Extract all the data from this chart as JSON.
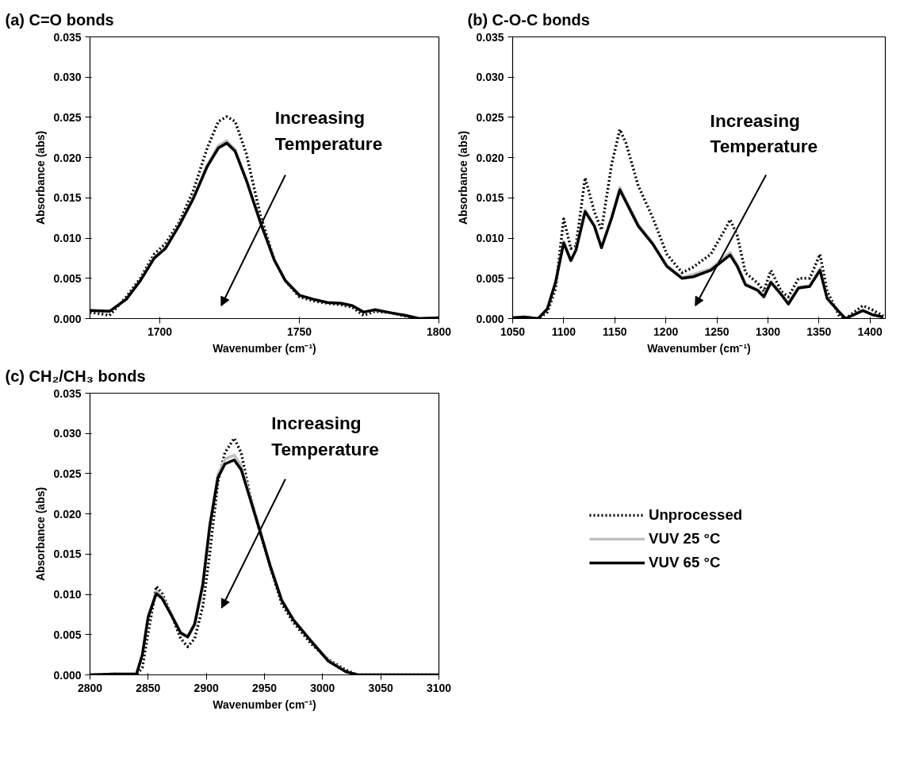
{
  "chart_data": [
    {
      "type": "line",
      "title": "(a) C=O bonds",
      "xlabel": "Wavenumber (cm⁻¹)",
      "ylabel": "Absorbance (abs)",
      "xlim": [
        1675,
        1800
      ],
      "xticks": [
        1700,
        1750,
        1800
      ],
      "ylim": [
        0,
        0.035
      ],
      "yticks": [
        {
          "value": 0,
          "label": "0.000"
        },
        {
          "value": 0.005,
          "label": "0.005"
        },
        {
          "value": 0.01,
          "label": "0.010"
        },
        {
          "value": 0.015,
          "label": "0.015"
        },
        {
          "value": 0.02,
          "label": "0.020"
        },
        {
          "value": 0.025,
          "label": "0.025"
        },
        {
          "value": 0.03,
          "label": "0.030"
        },
        {
          "value": 0.035,
          "label": "0.035"
        }
      ],
      "grid": false,
      "legend": false,
      "annotations": [
        "Increasing Temperature"
      ],
      "x": [
        1675,
        1682,
        1688,
        1693,
        1698,
        1702,
        1707,
        1712,
        1717,
        1721,
        1724,
        1727,
        1731,
        1736,
        1741,
        1745,
        1750,
        1755,
        1760,
        1765,
        1769,
        1773,
        1777,
        1783,
        1788,
        1793,
        1800
      ],
      "series": [
        {
          "color": "#000000",
          "line_style": "dotted",
          "values": [
            0.0008,
            0.0004,
            0.0027,
            0.005,
            0.008,
            0.0093,
            0.012,
            0.0159,
            0.0212,
            0.0245,
            0.0251,
            0.0245,
            0.0205,
            0.0129,
            0.0073,
            0.0047,
            0.0027,
            0.0022,
            0.0019,
            0.0017,
            0.0014,
            0.0004,
            0.0009,
            0.0007,
            0.0003,
            0.0,
            0.0001
          ]
        },
        {
          "color": "#c0c0c0",
          "line_style": "solid",
          "values": [
            0.001,
            0.0009,
            0.0024,
            0.0047,
            0.0076,
            0.0088,
            0.0117,
            0.015,
            0.0191,
            0.0215,
            0.0221,
            0.021,
            0.0173,
            0.0121,
            0.0073,
            0.0047,
            0.0029,
            0.0024,
            0.002,
            0.0019,
            0.0016,
            0.0008,
            0.0011,
            0.0007,
            0.0004,
            0.0,
            0.0001
          ]
        },
        {
          "color": "#000000",
          "line_style": "solid",
          "values": [
            0.001,
            0.0009,
            0.0024,
            0.0047,
            0.0075,
            0.0087,
            0.0116,
            0.0149,
            0.0189,
            0.0212,
            0.0218,
            0.0208,
            0.0172,
            0.012,
            0.0073,
            0.0047,
            0.0029,
            0.0024,
            0.002,
            0.0019,
            0.0016,
            0.0008,
            0.0011,
            0.0007,
            0.0004,
            0.0,
            0.0001
          ]
        }
      ]
    },
    {
      "type": "line",
      "title": "(b) C-O-C bonds",
      "xlabel": "Wavenumber (cm⁻¹)",
      "ylabel": "Absorbance (abs)",
      "xlim": [
        1050,
        1415
      ],
      "xticks": [
        1050,
        1100,
        1150,
        1200,
        1250,
        1300,
        1350,
        1400
      ],
      "ylim": [
        0,
        0.035
      ],
      "yticks": [
        {
          "value": 0,
          "label": "0.000"
        },
        {
          "value": 0.005,
          "label": "0.005"
        },
        {
          "value": 0.01,
          "label": "0.010"
        },
        {
          "value": 0.015,
          "label": "0.015"
        },
        {
          "value": 0.02,
          "label": "0.020"
        },
        {
          "value": 0.025,
          "label": "0.025"
        },
        {
          "value": 0.03,
          "label": "0.030"
        },
        {
          "value": 0.035,
          "label": "0.035"
        }
      ],
      "grid": false,
      "legend": false,
      "annotations": [
        "Increasing Temperature"
      ],
      "x": [
        1050,
        1061,
        1075,
        1084,
        1092,
        1100,
        1107,
        1112,
        1121,
        1130,
        1137,
        1147,
        1155,
        1161,
        1173,
        1187,
        1201,
        1216,
        1227,
        1244,
        1259,
        1263,
        1270,
        1278,
        1290,
        1296,
        1303,
        1313,
        1320,
        1330,
        1341,
        1351,
        1358,
        1370,
        1376,
        1393,
        1402,
        1413
      ],
      "series": [
        {
          "color": "#000000",
          "line_style": "dotted",
          "values": [
            0.0001,
            0.0002,
            0.0,
            0.0008,
            0.0037,
            0.0124,
            0.0087,
            0.009,
            0.0175,
            0.0133,
            0.011,
            0.0192,
            0.0235,
            0.0218,
            0.0165,
            0.0126,
            0.008,
            0.0057,
            0.0064,
            0.008,
            0.0113,
            0.0123,
            0.0103,
            0.0057,
            0.0044,
            0.0034,
            0.006,
            0.0034,
            0.0027,
            0.005,
            0.005,
            0.008,
            0.0034,
            0.0003,
            0.0,
            0.0016,
            0.0011,
            0.0003
          ]
        },
        {
          "color": "#c0c0c0",
          "line_style": "solid",
          "values": [
            0.0001,
            0.0002,
            0.0,
            0.0012,
            0.0045,
            0.0096,
            0.0073,
            0.0086,
            0.0135,
            0.0116,
            0.0089,
            0.0127,
            0.0163,
            0.0147,
            0.0117,
            0.0094,
            0.0066,
            0.0051,
            0.0055,
            0.0062,
            0.0078,
            0.0082,
            0.0067,
            0.0043,
            0.0036,
            0.0028,
            0.0046,
            0.0031,
            0.0019,
            0.0039,
            0.0041,
            0.0062,
            0.0026,
            0.0008,
            0.0,
            0.001,
            0.0005,
            0.0002
          ]
        },
        {
          "color": "#000000",
          "line_style": "solid",
          "values": [
            0.0001,
            0.0002,
            0.0,
            0.0012,
            0.0045,
            0.0094,
            0.0072,
            0.0085,
            0.0133,
            0.0115,
            0.0088,
            0.0125,
            0.016,
            0.0145,
            0.0115,
            0.0093,
            0.0065,
            0.005,
            0.0052,
            0.006,
            0.0075,
            0.0079,
            0.0065,
            0.0042,
            0.0035,
            0.0027,
            0.0045,
            0.003,
            0.0018,
            0.0038,
            0.004,
            0.006,
            0.0025,
            0.0008,
            0.0,
            0.001,
            0.0005,
            0.0002
          ]
        }
      ]
    },
    {
      "type": "line",
      "title": "(c) CH₂/CH₃ bonds",
      "xlabel": "Wavenumber (cm⁻¹)",
      "ylabel": "Absorbance (abs)",
      "xlim": [
        2800,
        3100
      ],
      "xticks": [
        2800,
        2850,
        2900,
        2950,
        3000,
        3050,
        3100
      ],
      "ylim": [
        0,
        0.035
      ],
      "yticks": [
        {
          "value": 0,
          "label": "0.000"
        },
        {
          "value": 0.005,
          "label": "0.005"
        },
        {
          "value": 0.01,
          "label": "0.010"
        },
        {
          "value": 0.015,
          "label": "0.015"
        },
        {
          "value": 0.02,
          "label": "0.020"
        },
        {
          "value": 0.025,
          "label": "0.025"
        },
        {
          "value": 0.03,
          "label": "0.030"
        },
        {
          "value": 0.035,
          "label": "0.035"
        }
      ],
      "grid": false,
      "legend": "right",
      "annotations": [
        "Increasing Temperature"
      ],
      "x": [
        2800,
        2820,
        2840,
        2845,
        2850,
        2857,
        2862,
        2870,
        2878,
        2884,
        2890,
        2897,
        2903,
        2910,
        2916,
        2924,
        2930,
        2937,
        2945,
        2955,
        2965,
        2975,
        2990,
        3005,
        3020,
        3030,
        3100
      ],
      "series": [
        {
          "name": "Unprocessed",
          "color": "#000000",
          "line_style": "dotted",
          "values": [
            0,
            0.0001,
            0,
            0.0009,
            0.0052,
            0.011,
            0.0101,
            0.0075,
            0.0045,
            0.0035,
            0.0045,
            0.0085,
            0.0151,
            0.024,
            0.0276,
            0.0294,
            0.0276,
            0.0227,
            0.0184,
            0.0134,
            0.0088,
            0.0065,
            0.0039,
            0.0019,
            0.0006,
            0,
            0
          ]
        },
        {
          "name": "VUV 25 °C",
          "color": "#c0c0c0",
          "line_style": "solid",
          "values": [
            0,
            0.0001,
            0.0001,
            0.0025,
            0.0072,
            0.0104,
            0.0097,
            0.0075,
            0.0053,
            0.0048,
            0.0064,
            0.0113,
            0.0187,
            0.0249,
            0.0268,
            0.0273,
            0.026,
            0.0225,
            0.0186,
            0.0136,
            0.0093,
            0.0069,
            0.0043,
            0.0018,
            0.0004,
            0,
            0
          ]
        },
        {
          "name": "VUV 65 °C",
          "color": "#000000",
          "line_style": "solid",
          "values": [
            0,
            0.0001,
            0.0001,
            0.0025,
            0.0072,
            0.0101,
            0.0095,
            0.0074,
            0.0052,
            0.0047,
            0.0063,
            0.0112,
            0.0185,
            0.0245,
            0.0262,
            0.0267,
            0.0255,
            0.0222,
            0.0184,
            0.0135,
            0.0092,
            0.0068,
            0.0042,
            0.0017,
            0.0004,
            0,
            0
          ]
        }
      ]
    }
  ]
}
